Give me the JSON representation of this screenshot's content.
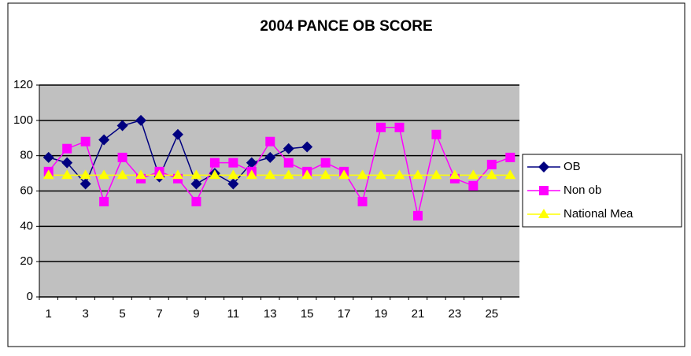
{
  "chart_data": {
    "type": "line",
    "title": "2004 PANCE OB SCORE",
    "categories": [
      1,
      null,
      3,
      null,
      5,
      null,
      7,
      null,
      9,
      null,
      11,
      null,
      13,
      null,
      15,
      null,
      17,
      null,
      19,
      null,
      21,
      null,
      23,
      null,
      25,
      null
    ],
    "series": [
      {
        "name": "OB",
        "color": "#000080",
        "marker": "diamond",
        "values": [
          79,
          76,
          64,
          89,
          97,
          100,
          68,
          92,
          64,
          70,
          64,
          76,
          79,
          84,
          85,
          null,
          null,
          null,
          null,
          null,
          null,
          null,
          null,
          null,
          null,
          null
        ]
      },
      {
        "name": "Non ob",
        "color": "#ff00ff",
        "marker": "square",
        "values": [
          71,
          84,
          88,
          54,
          79,
          67,
          71,
          67,
          54,
          76,
          76,
          71,
          88,
          76,
          71,
          76,
          71,
          54,
          96,
          96,
          46,
          92,
          67,
          63,
          75,
          79
        ]
      },
      {
        "name": "National Mea",
        "color": "#ffff00",
        "marker": "triangle",
        "values": [
          69,
          69,
          69,
          69,
          69,
          69,
          69,
          69,
          69,
          69,
          69,
          69,
          69,
          69,
          69,
          69,
          69,
          69,
          69,
          69,
          69,
          69,
          69,
          69,
          69,
          69
        ]
      }
    ],
    "ylim": [
      0,
      120
    ],
    "yticks": [
      0,
      20,
      40,
      60,
      80,
      100,
      120
    ],
    "grid": true,
    "legend": "right"
  }
}
